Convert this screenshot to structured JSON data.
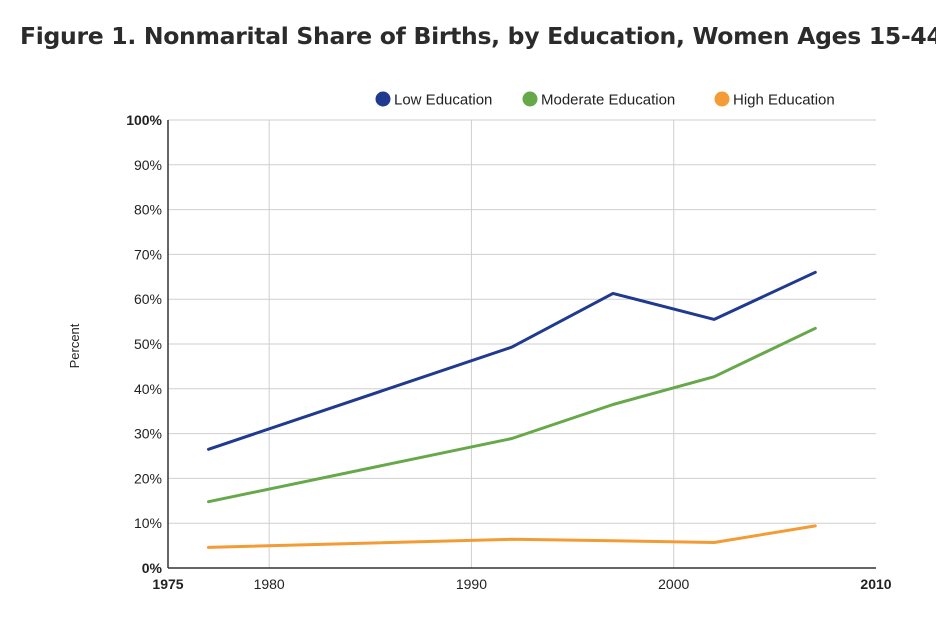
{
  "chart_data": {
    "type": "line",
    "title": "Figure 1. Nonmarital Share of Births, by Education, Women Ages 15-44",
    "ylabel": "Percent",
    "xlabel": "",
    "xlim": [
      1975,
      2010
    ],
    "ylim": [
      0,
      100
    ],
    "xticks": [
      {
        "value": 1975,
        "label": "1975",
        "bold": true
      },
      {
        "value": 1980,
        "label": "1980",
        "bold": false
      },
      {
        "value": 1990,
        "label": "1990",
        "bold": false
      },
      {
        "value": 2000,
        "label": "2000",
        "bold": false
      },
      {
        "value": 2010,
        "label": "2010",
        "bold": true
      }
    ],
    "yticks": [
      {
        "value": 0,
        "label": "0%",
        "bold": true
      },
      {
        "value": 10,
        "label": "10%",
        "bold": false
      },
      {
        "value": 20,
        "label": "20%",
        "bold": false
      },
      {
        "value": 30,
        "label": "30%",
        "bold": false
      },
      {
        "value": 40,
        "label": "40%",
        "bold": false
      },
      {
        "value": 50,
        "label": "50%",
        "bold": false
      },
      {
        "value": 60,
        "label": "60%",
        "bold": false
      },
      {
        "value": 70,
        "label": "70%",
        "bold": false
      },
      {
        "value": 80,
        "label": "80%",
        "bold": false
      },
      {
        "value": 90,
        "label": "90%",
        "bold": false
      },
      {
        "value": 100,
        "label": "100%",
        "bold": true
      }
    ],
    "vgrid": [
      1980,
      1990,
      2000
    ],
    "legend_position": "top-right",
    "series": [
      {
        "name": "Low Education",
        "color": "#1f3a8f",
        "x": [
          1977,
          1992,
          1997,
          2002,
          2007
        ],
        "y": [
          26.5,
          49.3,
          61.3,
          55.5,
          66.0
        ]
      },
      {
        "name": "Moderate Education",
        "color": "#66a84a",
        "x": [
          1977,
          1992,
          1997,
          2002,
          2007
        ],
        "y": [
          14.8,
          28.9,
          36.5,
          42.7,
          53.5
        ]
      },
      {
        "name": "High Education",
        "color": "#f39b34",
        "x": [
          1977,
          1992,
          1997,
          2002,
          2007
        ],
        "y": [
          4.6,
          6.4,
          6.1,
          5.7,
          9.4
        ]
      }
    ]
  }
}
